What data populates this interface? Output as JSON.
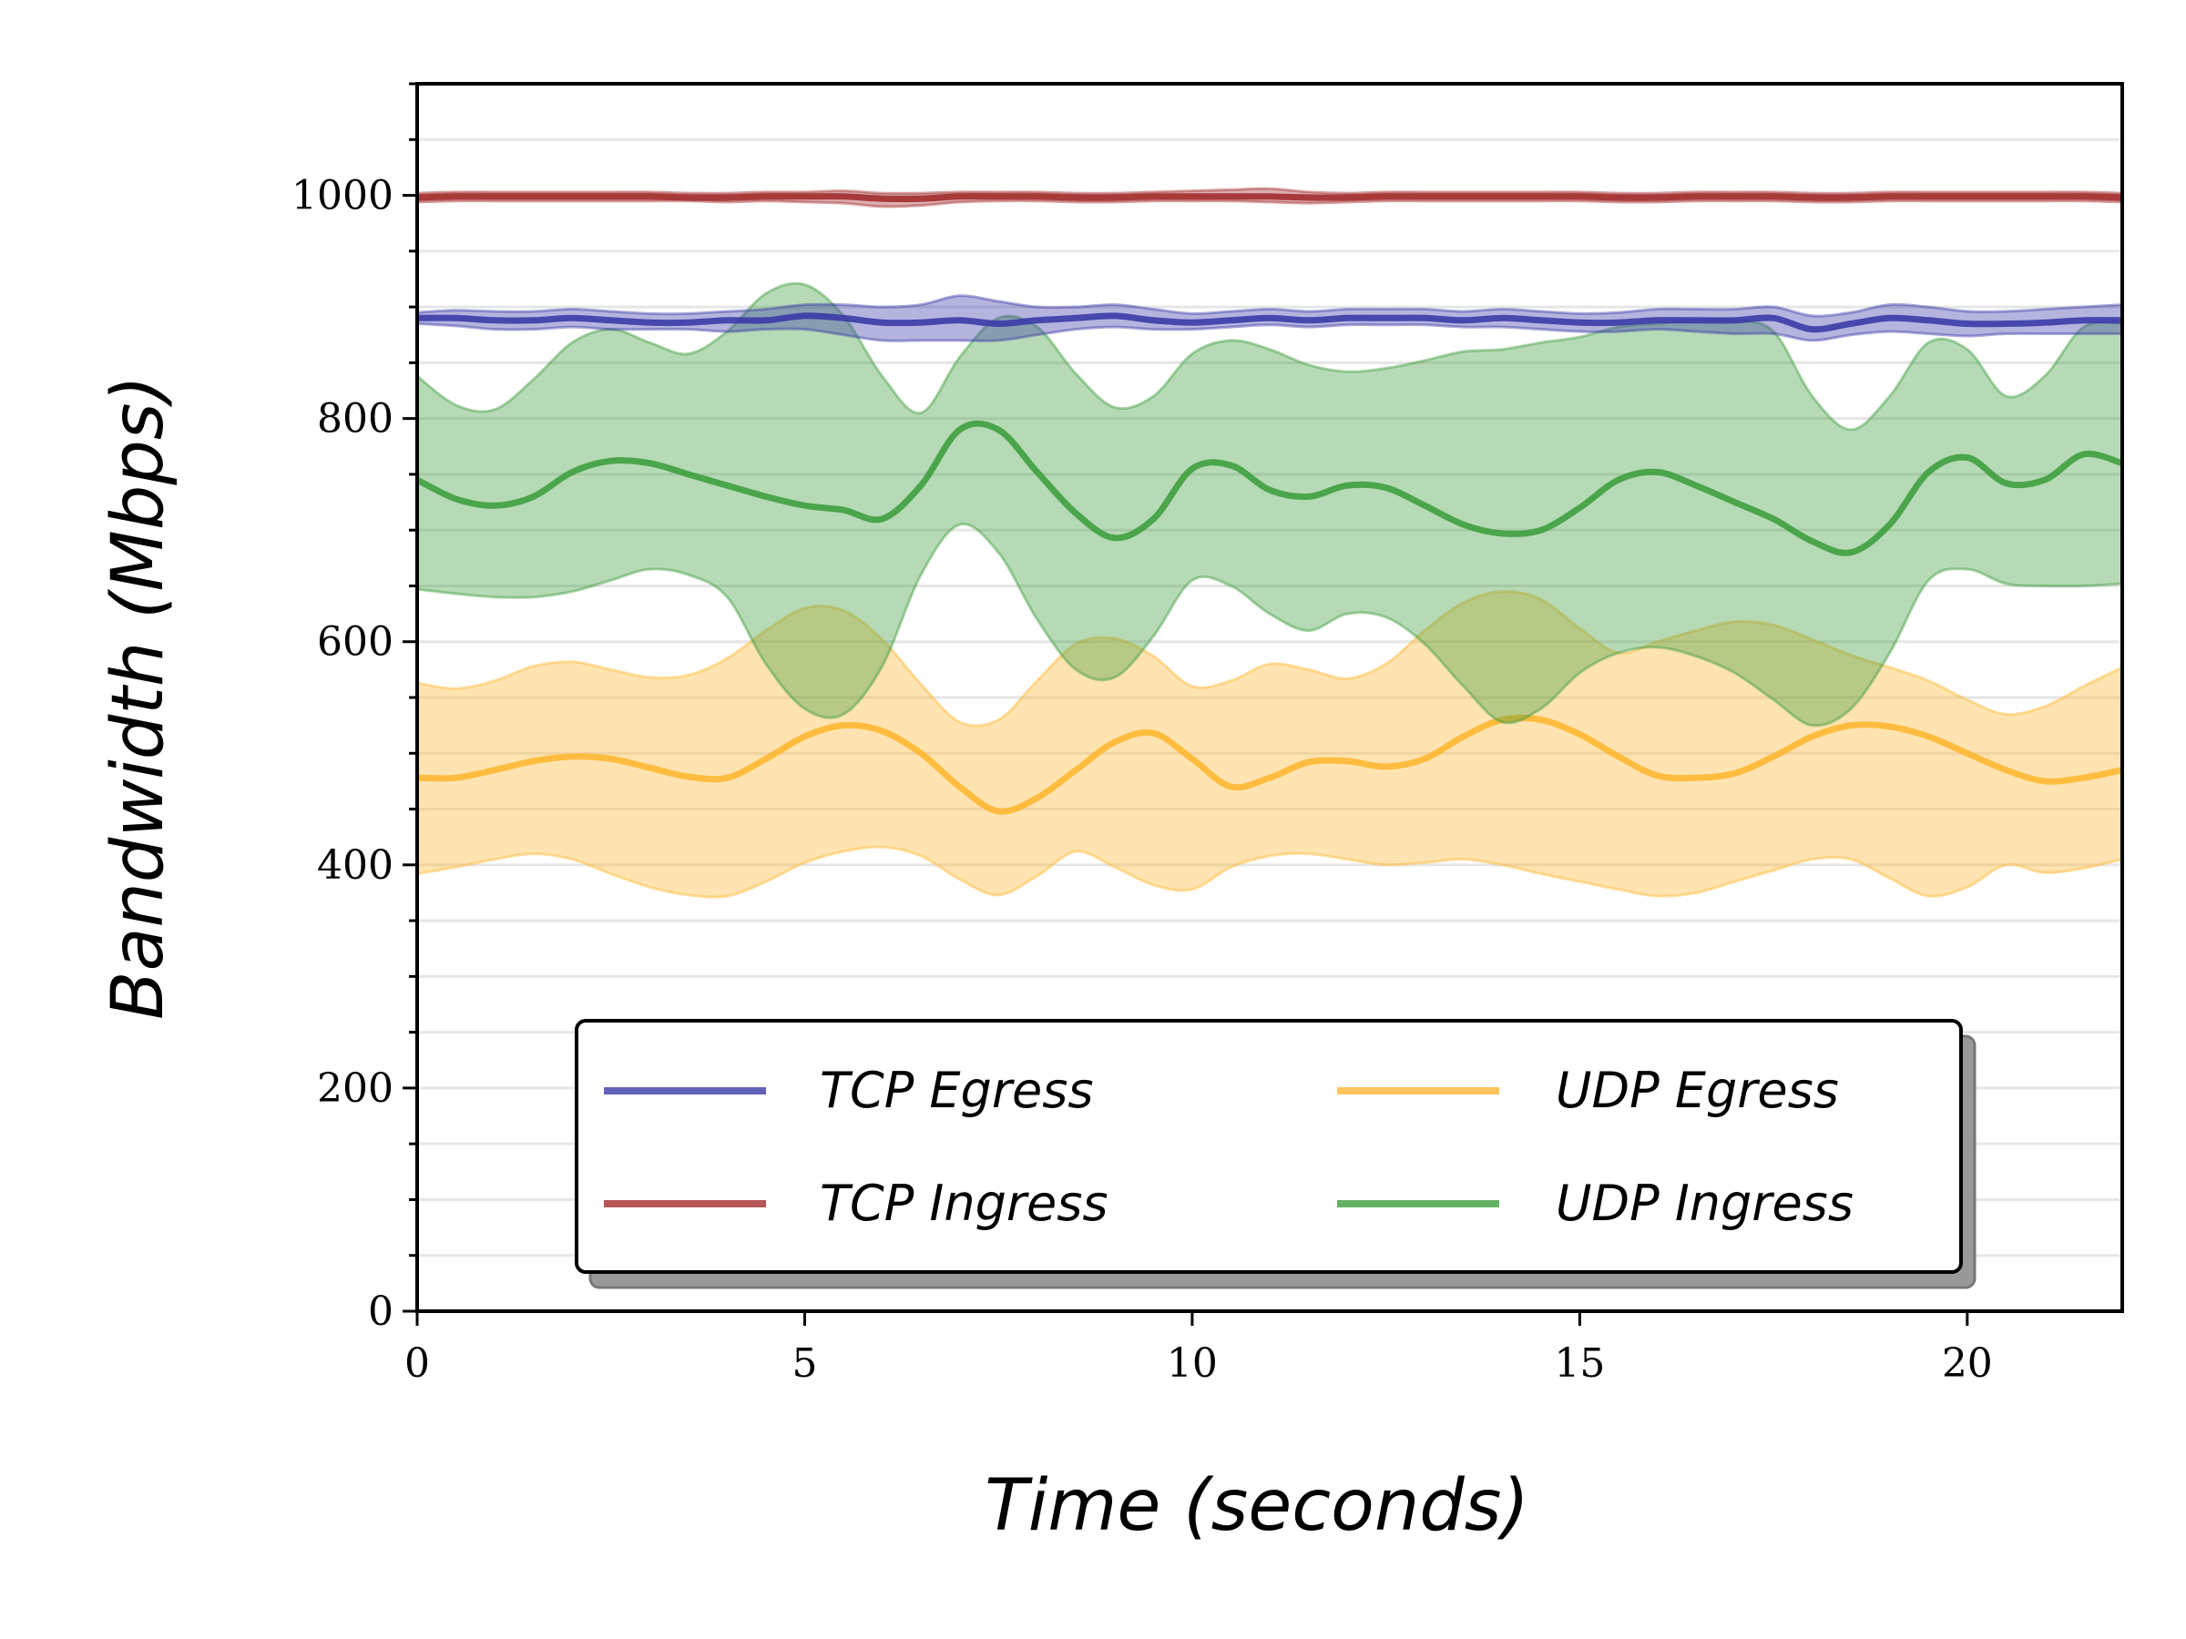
{
  "chart_data": {
    "type": "line",
    "xlabel": "Time (seconds)",
    "ylabel": "Bandwidth (Mbps)",
    "xlim": [
      0,
      22
    ],
    "ylim": [
      0,
      1100
    ],
    "x_ticks": [
      0,
      5,
      10,
      15,
      20
    ],
    "x_tick_labels": [
      "0",
      "5",
      "10",
      "15",
      "20"
    ],
    "y_ticks": [
      0,
      200,
      400,
      600,
      800,
      1000
    ],
    "y_tick_labels": [
      "0",
      "200",
      "400",
      "600",
      "800",
      "1000"
    ],
    "y_minor_step": 50,
    "grid": "horizontal-minor",
    "legend_position": "lower-center",
    "x": [
      0,
      0.5,
      1,
      1.5,
      2,
      2.5,
      3,
      3.5,
      4,
      4.5,
      5,
      5.5,
      6,
      6.5,
      7,
      7.5,
      8,
      8.5,
      9,
      9.5,
      10,
      10.5,
      11,
      11.5,
      12,
      12.5,
      13,
      13.5,
      14,
      14.5,
      15,
      15.5,
      16,
      16.5,
      17,
      17.5,
      18,
      18.5,
      19,
      19.5,
      20,
      20.5,
      21,
      21.5,
      22
    ],
    "series": [
      {
        "name": "TCP Egress",
        "color": "#3b3ba8",
        "mean": [
          890,
          890,
          888,
          888,
          890,
          888,
          886,
          886,
          888,
          888,
          892,
          890,
          886,
          886,
          888,
          885,
          888,
          890,
          892,
          888,
          886,
          888,
          890,
          888,
          890,
          890,
          890,
          888,
          890,
          888,
          886,
          886,
          888,
          888,
          888,
          890,
          880,
          885,
          890,
          888,
          885,
          885,
          886,
          888,
          888
        ],
        "lower": [
          885,
          883,
          880,
          880,
          882,
          880,
          880,
          880,
          878,
          880,
          880,
          875,
          870,
          870,
          870,
          870,
          875,
          880,
          882,
          880,
          880,
          882,
          884,
          882,
          884,
          884,
          884,
          882,
          882,
          880,
          878,
          878,
          880,
          878,
          876,
          876,
          870,
          875,
          878,
          876,
          874,
          876,
          876,
          876,
          876
        ],
        "upper": [
          895,
          897,
          896,
          896,
          898,
          896,
          894,
          894,
          896,
          898,
          902,
          902,
          900,
          902,
          910,
          905,
          900,
          900,
          902,
          898,
          894,
          896,
          898,
          896,
          898,
          898,
          898,
          896,
          898,
          896,
          894,
          895,
          898,
          898,
          898,
          900,
          892,
          895,
          902,
          900,
          896,
          896,
          898,
          900,
          902
        ]
      },
      {
        "name": "TCP Ingress",
        "color": "#a32d2d",
        "mean": [
          998,
          999,
          999,
          999,
          999,
          999,
          999,
          998,
          998,
          999,
          999,
          999,
          997,
          997,
          999,
          999,
          999,
          998,
          998,
          999,
          999,
          999,
          999,
          998,
          998,
          999,
          999,
          999,
          999,
          999,
          999,
          998,
          998,
          999,
          999,
          999,
          998,
          998,
          999,
          999,
          999,
          999,
          999,
          999,
          998
        ],
        "lower": [
          994,
          995,
          995,
          995,
          995,
          995,
          995,
          995,
          994,
          995,
          994,
          993,
          990,
          991,
          994,
          995,
          995,
          994,
          994,
          995,
          995,
          995,
          994,
          993,
          994,
          995,
          995,
          995,
          995,
          995,
          995,
          994,
          994,
          995,
          995,
          995,
          994,
          994,
          995,
          995,
          995,
          995,
          995,
          995,
          994
        ],
        "upper": [
          1002,
          1003,
          1003,
          1003,
          1003,
          1003,
          1003,
          1002,
          1002,
          1003,
          1003,
          1004,
          1002,
          1002,
          1003,
          1003,
          1003,
          1002,
          1002,
          1003,
          1004,
          1005,
          1006,
          1003,
          1002,
          1003,
          1003,
          1003,
          1003,
          1003,
          1003,
          1002,
          1002,
          1003,
          1003,
          1003,
          1002,
          1002,
          1003,
          1003,
          1003,
          1003,
          1003,
          1003,
          1002
        ]
      },
      {
        "name": "UDP Egress",
        "color": "#ffb733",
        "mean": [
          478,
          478,
          485,
          493,
          497,
          495,
          487,
          479,
          478,
          495,
          515,
          525,
          520,
          500,
          470,
          448,
          460,
          485,
          510,
          518,
          495,
          470,
          478,
          492,
          493,
          488,
          495,
          515,
          530,
          530,
          517,
          497,
          480,
          478,
          482,
          497,
          515,
          525,
          524,
          515,
          500,
          485,
          475,
          478,
          485
        ],
        "lower": [
          392,
          398,
          405,
          410,
          405,
          392,
          380,
          373,
          372,
          385,
          402,
          412,
          416,
          408,
          387,
          373,
          390,
          412,
          398,
          382,
          378,
          398,
          408,
          410,
          405,
          400,
          402,
          405,
          400,
          392,
          385,
          378,
          372,
          375,
          385,
          395,
          405,
          405,
          388,
          372,
          380,
          400,
          393,
          397,
          405
        ],
        "upper": [
          563,
          558,
          565,
          578,
          582,
          575,
          568,
          570,
          585,
          610,
          630,
          628,
          602,
          562,
          528,
          530,
          565,
          598,
          603,
          587,
          560,
          565,
          580,
          575,
          567,
          580,
          610,
          635,
          645,
          638,
          612,
          590,
          600,
          610,
          618,
          615,
          602,
          588,
          577,
          565,
          548,
          535,
          542,
          560,
          577
        ]
      },
      {
        "name": "UDP Ingress",
        "color": "#3f9e3f",
        "mean": [
          745,
          728,
          722,
          730,
          752,
          762,
          760,
          750,
          740,
          730,
          722,
          718,
          710,
          740,
          790,
          790,
          752,
          715,
          693,
          710,
          755,
          758,
          736,
          730,
          740,
          738,
          722,
          705,
          697,
          700,
          720,
          745,
          752,
          740,
          725,
          710,
          690,
          680,
          705,
          752,
          765,
          742,
          745,
          768,
          760
        ],
        "lower": [
          647,
          643,
          640,
          640,
          645,
          655,
          665,
          660,
          640,
          580,
          540,
          535,
          578,
          660,
          705,
          680,
          620,
          575,
          568,
          605,
          655,
          650,
          625,
          610,
          625,
          622,
          598,
          560,
          528,
          540,
          572,
          590,
          595,
          587,
          572,
          548,
          525,
          540,
          590,
          655,
          665,
          652,
          650,
          650,
          652
        ],
        "upper": [
          838,
          812,
          808,
          835,
          868,
          880,
          868,
          858,
          878,
          912,
          920,
          892,
          838,
          805,
          855,
          890,
          882,
          840,
          810,
          820,
          858,
          870,
          862,
          848,
          842,
          845,
          852,
          860,
          862,
          868,
          873,
          882,
          885,
          888,
          888,
          878,
          820,
          790,
          820,
          868,
          862,
          820,
          838,
          882,
          885
        ]
      }
    ]
  }
}
